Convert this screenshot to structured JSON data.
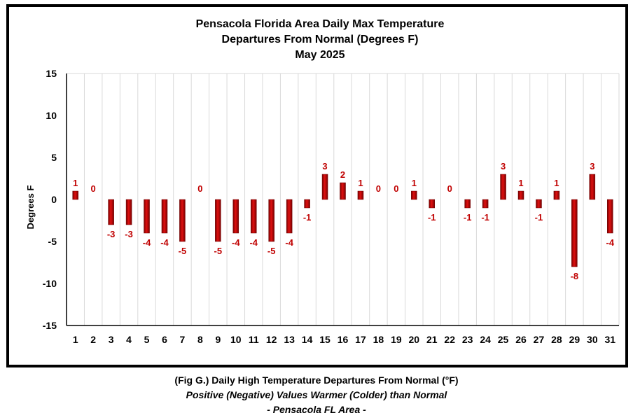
{
  "chart_data": {
    "type": "bar",
    "title": [
      "Pensacola Florida Area Daily Max Temperature",
      "Departures From Normal (Degrees F)",
      "May 2025"
    ],
    "xlabel": "",
    "ylabel": "Degrees F",
    "ylim": [
      -15,
      15
    ],
    "yticks": [
      15,
      10,
      5,
      0,
      -5,
      -10,
      -15
    ],
    "grid": "vertical",
    "legend": "none",
    "categories": [
      "1",
      "2",
      "3",
      "4",
      "5",
      "6",
      "7",
      "8",
      "9",
      "10",
      "11",
      "12",
      "13",
      "14",
      "15",
      "16",
      "17",
      "18",
      "19",
      "20",
      "21",
      "22",
      "23",
      "24",
      "25",
      "26",
      "27",
      "28",
      "29",
      "30",
      "31"
    ],
    "values": [
      1,
      0,
      -3,
      -3,
      -4,
      -4,
      -5,
      0,
      -5,
      -4,
      -4,
      -5,
      -4,
      -1,
      3,
      2,
      1,
      0,
      0,
      1,
      -1,
      0,
      -1,
      -1,
      3,
      1,
      -1,
      1,
      -8,
      3,
      -4
    ],
    "bar_color": "#c00000",
    "label_color": "#c00000"
  },
  "caption": {
    "line1": "(Fig G.) Daily High Temperature Departures From Normal (°F)",
    "line2": "Positive (Negative) Values Warmer (Colder) than Normal",
    "line3": "- Pensacola FL Area -"
  }
}
